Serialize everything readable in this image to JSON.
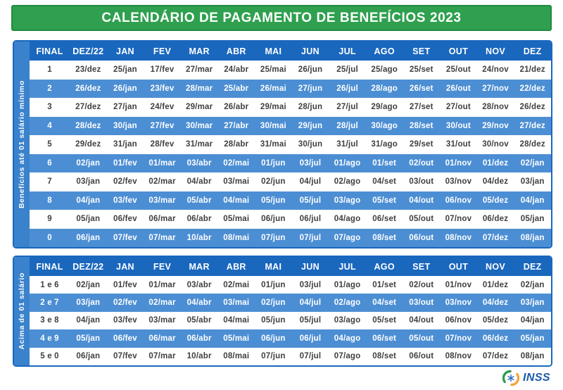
{
  "title": "CALENDÁRIO DE PAGAMENTO DE BENEFÍCIOS 2023",
  "columns": [
    "FINAL",
    "DEZ/22",
    "JAN",
    "FEV",
    "MAR",
    "ABR",
    "MAI",
    "JUN",
    "JUL",
    "AGO",
    "SET",
    "OUT",
    "NOV",
    "DEZ"
  ],
  "tables": [
    {
      "side_label": "Benefícios até 01 salário mínimo",
      "rows": [
        {
          "final": "1",
          "dates": [
            "23/dez",
            "25/jan",
            "17/fev",
            "27/mar",
            "24/abr",
            "25/mai",
            "26/jun",
            "25/jul",
            "25/ago",
            "25/set",
            "25/out",
            "24/nov",
            "21/dez"
          ]
        },
        {
          "final": "2",
          "dates": [
            "26/dez",
            "26/jan",
            "23/fev",
            "28/mar",
            "25/abr",
            "26/mai",
            "27/jun",
            "26/jul",
            "28/ago",
            "26/set",
            "26/out",
            "27/nov",
            "22/dez"
          ]
        },
        {
          "final": "3",
          "dates": [
            "27/dez",
            "27/jan",
            "24/fev",
            "29/mar",
            "26/abr",
            "29/mai",
            "28/jun",
            "27/jul",
            "29/ago",
            "27/set",
            "27/out",
            "28/nov",
            "26/dez"
          ]
        },
        {
          "final": "4",
          "dates": [
            "28/dez",
            "30/jan",
            "27/fev",
            "30/mar",
            "27/abr",
            "30/mai",
            "29/jun",
            "28/jul",
            "30/ago",
            "28/set",
            "30/out",
            "29/nov",
            "27/dez"
          ]
        },
        {
          "final": "5",
          "dates": [
            "29/dez",
            "31/jan",
            "28/fev",
            "31/mar",
            "28/abr",
            "31/mai",
            "30/jun",
            "31/jul",
            "31/ago",
            "29/set",
            "31/out",
            "30/nov",
            "28/dez"
          ]
        },
        {
          "final": "6",
          "dates": [
            "02/jan",
            "01/fev",
            "01/mar",
            "03/abr",
            "02/mai",
            "01/jun",
            "03/jul",
            "01/ago",
            "01/set",
            "02/out",
            "01/nov",
            "01/dez",
            "02/jan"
          ]
        },
        {
          "final": "7",
          "dates": [
            "03/jan",
            "02/fev",
            "02/mar",
            "04/abr",
            "03/mai",
            "02/jun",
            "04/jul",
            "02/ago",
            "04/set",
            "03/out",
            "03/nov",
            "04/dez",
            "03/jan"
          ]
        },
        {
          "final": "8",
          "dates": [
            "04/jan",
            "03/fev",
            "03/mar",
            "05/abr",
            "04/mai",
            "05/jun",
            "05/jul",
            "03/ago",
            "05/set",
            "04/out",
            "06/nov",
            "05/dez",
            "04/jan"
          ]
        },
        {
          "final": "9",
          "dates": [
            "05/jan",
            "06/fev",
            "06/mar",
            "06/abr",
            "05/mai",
            "06/jun",
            "06/jul",
            "04/ago",
            "06/set",
            "05/out",
            "07/nov",
            "06/dez",
            "05/jan"
          ]
        },
        {
          "final": "0",
          "dates": [
            "06/jan",
            "07/fev",
            "07/mar",
            "10/abr",
            "08/mai",
            "07/jun",
            "07/jul",
            "07/ago",
            "08/set",
            "06/out",
            "08/nov",
            "07/dez",
            "08/jan"
          ]
        }
      ]
    },
    {
      "side_label": "Acima de 01 salário",
      "rows": [
        {
          "final": "1 e 6",
          "dates": [
            "02/jan",
            "01/fev",
            "01/mar",
            "03/abr",
            "02/mai",
            "01/jun",
            "03/jul",
            "01/ago",
            "01/set",
            "02/out",
            "01/nov",
            "01/dez",
            "02/jan"
          ]
        },
        {
          "final": "2 e 7",
          "dates": [
            "03/jan",
            "02/fev",
            "02/mar",
            "04/abr",
            "03/mai",
            "02/jun",
            "04/jul",
            "02/ago",
            "04/set",
            "03/out",
            "03/nov",
            "04/dez",
            "03/jan"
          ]
        },
        {
          "final": "3 e 8",
          "dates": [
            "04/jan",
            "03/fev",
            "03/mar",
            "05/abr",
            "04/mai",
            "05/jun",
            "05/jul",
            "03/ago",
            "05/set",
            "04/out",
            "06/nov",
            "05/dez",
            "04/jan"
          ]
        },
        {
          "final": "4 e 9",
          "dates": [
            "05/jan",
            "06/fev",
            "06/mar",
            "06/abr",
            "05/mai",
            "06/jun",
            "06/jul",
            "04/ago",
            "06/set",
            "05/out",
            "07/nov",
            "06/dez",
            "05/jan"
          ]
        },
        {
          "final": "5 e 0",
          "dates": [
            "06/jan",
            "07/fev",
            "07/mar",
            "10/abr",
            "08/mai",
            "07/jun",
            "07/jul",
            "07/ago",
            "08/set",
            "06/out",
            "08/nov",
            "07/dez",
            "08/jan"
          ]
        }
      ]
    }
  ],
  "footer": {
    "logo_text": "INSS"
  },
  "icons": {
    "logo_mark": "inss-swirl-logo-icon"
  },
  "colors": {
    "banner_green": "#2fa04f",
    "banner_border": "#1f8c3e",
    "header_blue": "#1a67be",
    "row_blue": "#4c8ed3",
    "sidebar_blue": "#3b82cc",
    "text_dark": "#3f3f3f",
    "logo_blue": "#1b5aa8",
    "logo_green": "#2f9e4f",
    "logo_yellow": "#f2a53a"
  }
}
